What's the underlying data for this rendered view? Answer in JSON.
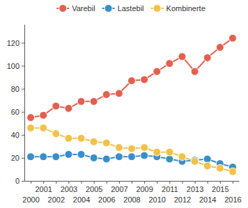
{
  "chart_data": {
    "type": "line",
    "categories": [
      "2000",
      "2001",
      "2002",
      "2003",
      "2004",
      "2005",
      "2006",
      "2007",
      "2008",
      "2009",
      "2010",
      "2011",
      "2012",
      "2013",
      "2014",
      "2015",
      "2016"
    ],
    "series": [
      {
        "name": "Varebil",
        "color": "#e2604f",
        "marker": "circle",
        "values": [
          55,
          57,
          65,
          63,
          69,
          69,
          75,
          76,
          87,
          88,
          95,
          102,
          108,
          95,
          107,
          116,
          124
        ]
      },
      {
        "name": "Lastebil",
        "color": "#3a8ec8",
        "marker": "circle",
        "values": [
          21,
          21,
          21,
          23,
          23,
          20,
          19,
          21,
          21,
          22,
          21,
          19,
          17,
          18,
          19,
          15,
          12
        ]
      },
      {
        "name": "Kombinerte",
        "color": "#f1c24a",
        "marker": "circle",
        "values": [
          46,
          46,
          41,
          37,
          37,
          34,
          33,
          29,
          28,
          29,
          25,
          25,
          21,
          17,
          13,
          11,
          8
        ]
      }
    ],
    "ylim": [
      0,
      136
    ],
    "yticks": [
      0,
      20,
      40,
      60,
      80,
      100,
      120
    ],
    "grid": false,
    "legend": "top"
  }
}
